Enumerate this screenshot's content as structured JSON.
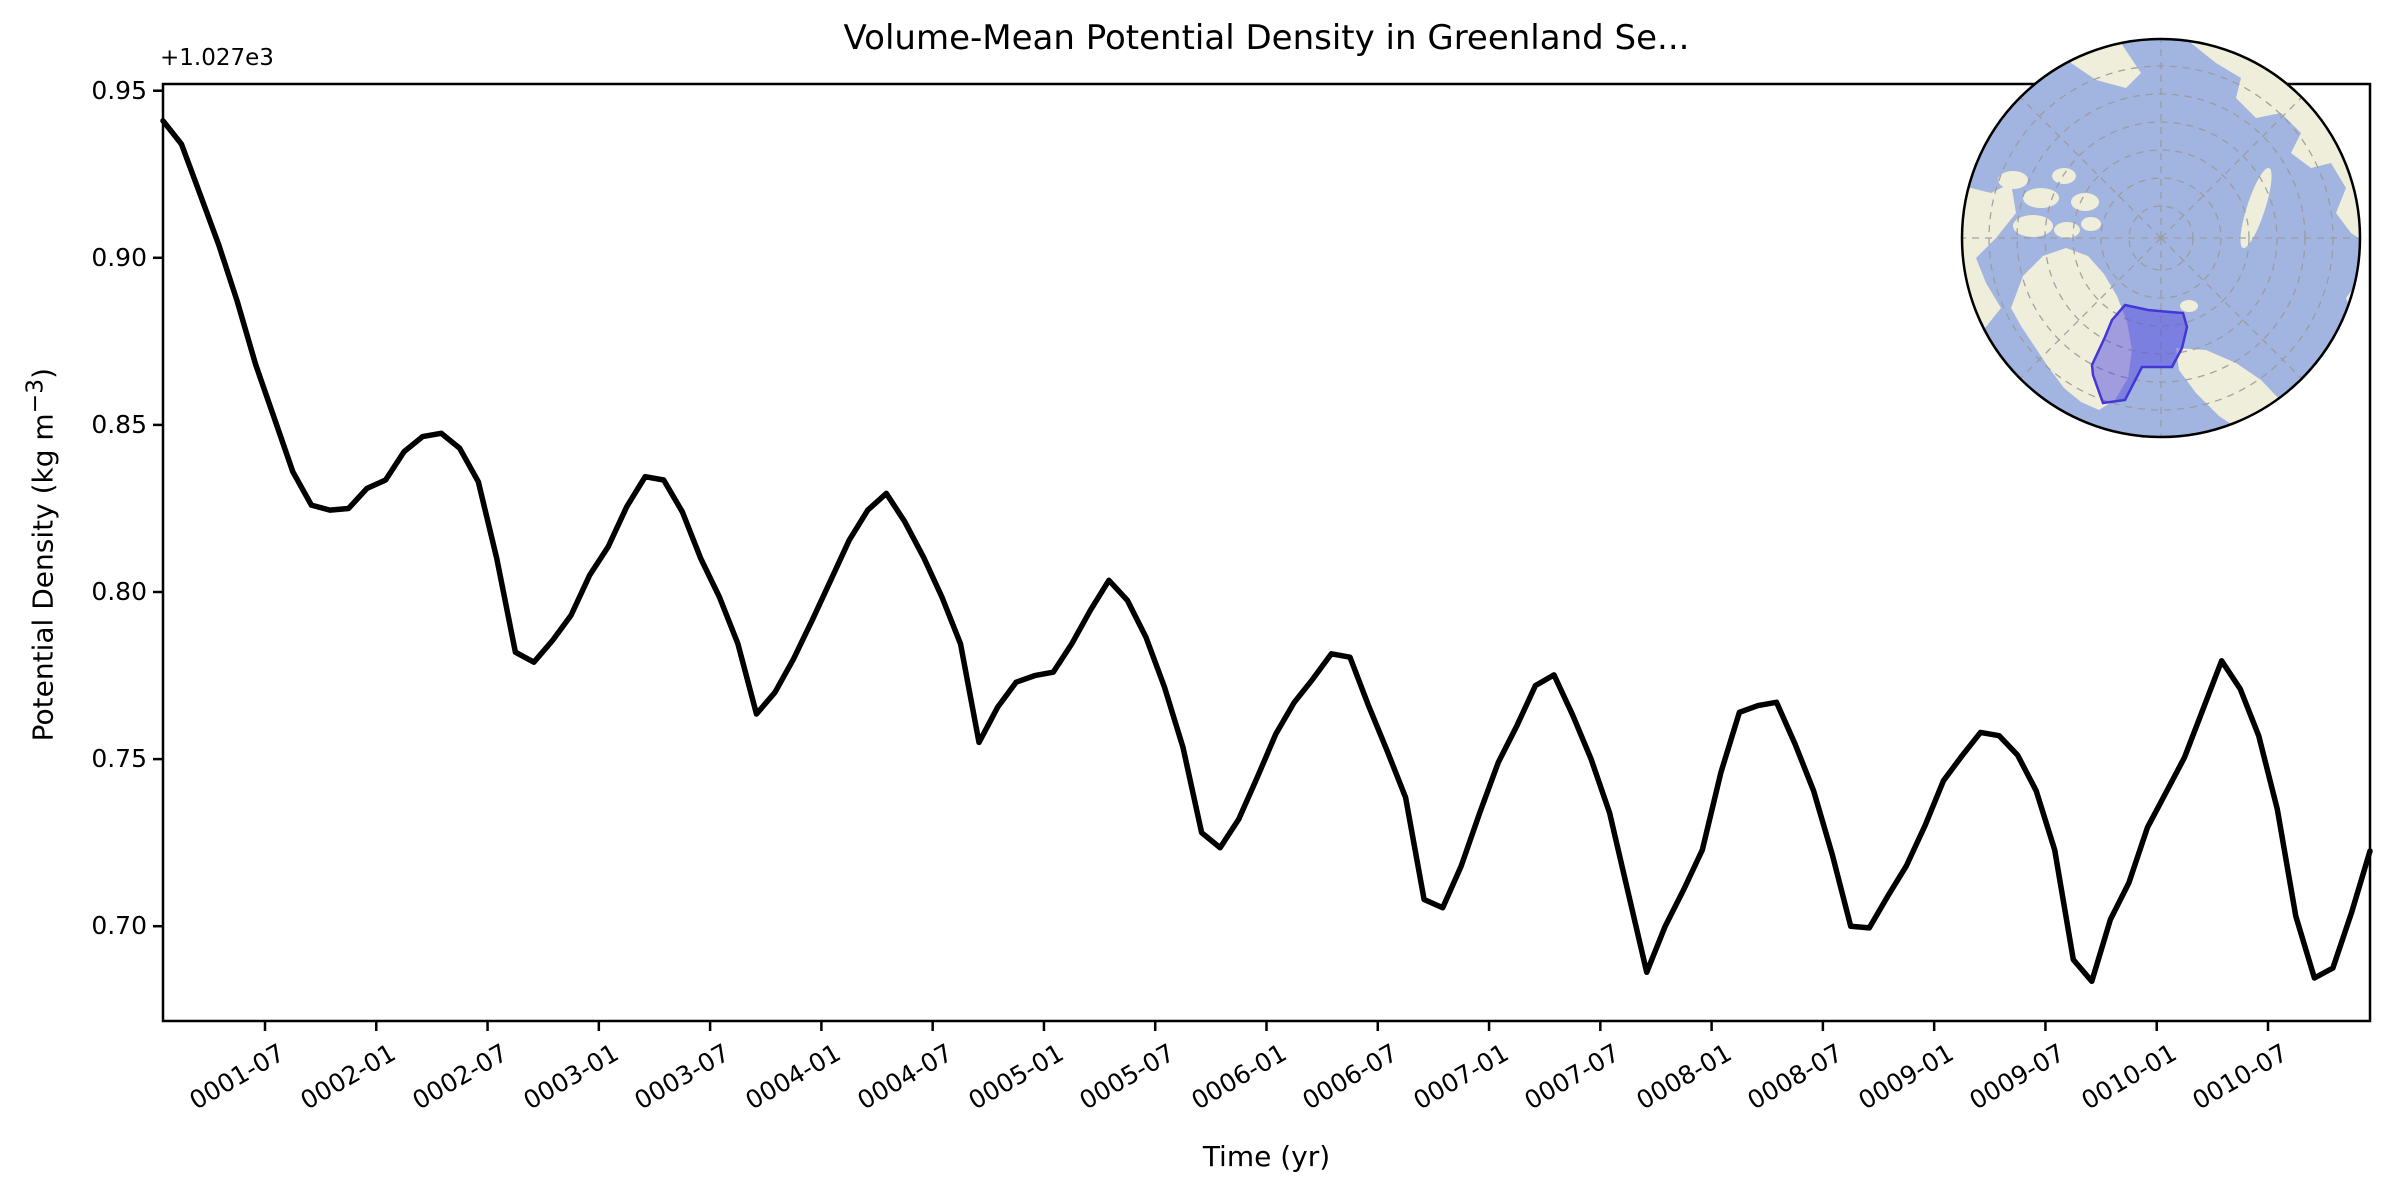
{
  "figure": {
    "kind": "matplotlib-style time series with polar map inset",
    "background": "#ffffff"
  },
  "chart_data": {
    "type": "line",
    "title": "Volume-Mean Potential Density in Greenland Se...",
    "xlabel": "Time (yr)",
    "ylabel": "Potential Density (kg m−3)",
    "ylabel_parts": {
      "prefix": "Potential Density (kg m",
      "sup": "−3",
      "suffix": ")"
    },
    "y_offset_label": "+1.027e3",
    "y_offset_base": 1027,
    "line_color": "#000000",
    "grid": "off",
    "legend": "none",
    "ylim_minus_offset": [
      0.6706,
      0.9539
    ],
    "yticks": [
      {
        "label": "0.95",
        "value": 0.95
      },
      {
        "label": "0.90",
        "value": 0.9
      },
      {
        "label": "0.85",
        "value": 0.85
      },
      {
        "label": "0.80",
        "value": 0.8
      },
      {
        "label": "0.75",
        "value": 0.75
      },
      {
        "label": "0.70",
        "value": 0.7
      }
    ],
    "xticks": [
      {
        "label": "0001-07"
      },
      {
        "label": "0002-01"
      },
      {
        "label": "0002-07"
      },
      {
        "label": "0003-01"
      },
      {
        "label": "0003-07"
      },
      {
        "label": "0004-01"
      },
      {
        "label": "0004-07"
      },
      {
        "label": "0005-01"
      },
      {
        "label": "0005-07"
      },
      {
        "label": "0006-01"
      },
      {
        "label": "0006-07"
      },
      {
        "label": "0007-01"
      },
      {
        "label": "0007-07"
      },
      {
        "label": "0008-01"
      },
      {
        "label": "0008-07"
      },
      {
        "label": "0009-01"
      },
      {
        "label": "0009-07"
      },
      {
        "label": "0010-01"
      },
      {
        "label": "0010-07"
      }
    ],
    "series_name": "volume-mean potential density (monthly mean)",
    "months": [
      "0001-01",
      "0001-02",
      "0001-03",
      "0001-04",
      "0001-05",
      "0001-06",
      "0001-07",
      "0001-08",
      "0001-09",
      "0001-10",
      "0001-11",
      "0001-12",
      "0002-01",
      "0002-02",
      "0002-03",
      "0002-04",
      "0002-05",
      "0002-06",
      "0002-07",
      "0002-08",
      "0002-09",
      "0002-10",
      "0002-11",
      "0002-12",
      "0003-01",
      "0003-02",
      "0003-03",
      "0003-04",
      "0003-05",
      "0003-06",
      "0003-07",
      "0003-08",
      "0003-09",
      "0003-10",
      "0003-11",
      "0003-12",
      "0004-01",
      "0004-02",
      "0004-03",
      "0004-04",
      "0004-05",
      "0004-06",
      "0004-07",
      "0004-08",
      "0004-09",
      "0004-10",
      "0004-11",
      "0004-12",
      "0005-01",
      "0005-02",
      "0005-03",
      "0005-04",
      "0005-05",
      "0005-06",
      "0005-07",
      "0005-08",
      "0005-09",
      "0005-10",
      "0005-11",
      "0005-12",
      "0006-01",
      "0006-02",
      "0006-03",
      "0006-04",
      "0006-05",
      "0006-06",
      "0006-07",
      "0006-08",
      "0006-09",
      "0006-10",
      "0006-11",
      "0006-12",
      "0007-01",
      "0007-02",
      "0007-03",
      "0007-04",
      "0007-05",
      "0007-06",
      "0007-07",
      "0007-08",
      "0007-09",
      "0007-10",
      "0007-11",
      "0007-12",
      "0008-01",
      "0008-02",
      "0008-03",
      "0008-04",
      "0008-05",
      "0008-06",
      "0008-07",
      "0008-08",
      "0008-09",
      "0008-10",
      "0008-11",
      "0008-12",
      "0009-01",
      "0009-02",
      "0009-03",
      "0009-04",
      "0009-05",
      "0009-06",
      "0009-07",
      "0009-08",
      "0009-09",
      "0009-10",
      "0009-11",
      "0009-12",
      "0010-01",
      "0010-02",
      "0010-03",
      "0010-04",
      "0010-05",
      "0010-06",
      "0010-07",
      "0010-08",
      "0010-09",
      "0010-10",
      "0010-11",
      "0010-12"
    ],
    "values_minus_offset": [
      0.941,
      0.934,
      0.919,
      0.904,
      0.887,
      0.868,
      0.852,
      0.836,
      0.826,
      0.8245,
      0.825,
      0.831,
      0.8335,
      0.842,
      0.8465,
      0.8475,
      0.843,
      0.833,
      0.81,
      0.782,
      0.779,
      0.7855,
      0.793,
      0.805,
      0.8135,
      0.8255,
      0.8345,
      0.8335,
      0.824,
      0.81,
      0.7985,
      0.7845,
      0.7635,
      0.77,
      0.78,
      0.7915,
      0.8035,
      0.8155,
      0.8245,
      0.8295,
      0.821,
      0.8105,
      0.7985,
      0.7845,
      0.755,
      0.7655,
      0.773,
      0.775,
      0.776,
      0.7845,
      0.7945,
      0.8035,
      0.7975,
      0.7865,
      0.7715,
      0.7535,
      0.728,
      0.7235,
      0.732,
      0.7445,
      0.7575,
      0.767,
      0.774,
      0.7815,
      0.7805,
      0.766,
      0.7525,
      0.7385,
      0.708,
      0.7055,
      0.718,
      0.734,
      0.749,
      0.76,
      0.772,
      0.7752,
      0.7633,
      0.75,
      0.7339,
      0.71,
      0.6862,
      0.7,
      0.711,
      0.7228,
      0.746,
      0.764,
      0.766,
      0.767,
      0.7545,
      0.7405,
      0.7215,
      0.7,
      0.6995,
      0.709,
      0.718,
      0.73,
      0.7435,
      0.751,
      0.758,
      0.757,
      0.7512,
      0.7405,
      0.7228,
      0.69,
      0.6835,
      0.702,
      0.713,
      0.7295,
      0.74,
      0.7505,
      0.765,
      0.7794,
      0.771,
      0.757,
      0.735,
      0.703,
      0.6845,
      0.6875,
      0.704,
      0.7225
    ]
  },
  "inset_map": {
    "description": "North polar stereographic inset with highlighted Greenland Sea region",
    "highlight_region": "Greenland Sea",
    "colors": {
      "ocean": "#a2b5e0",
      "land": "#efeeda",
      "graticule": "#9a9a9a",
      "region_fill": "#5349e0",
      "region_edge": "#4338d6",
      "border": "#000000"
    }
  }
}
